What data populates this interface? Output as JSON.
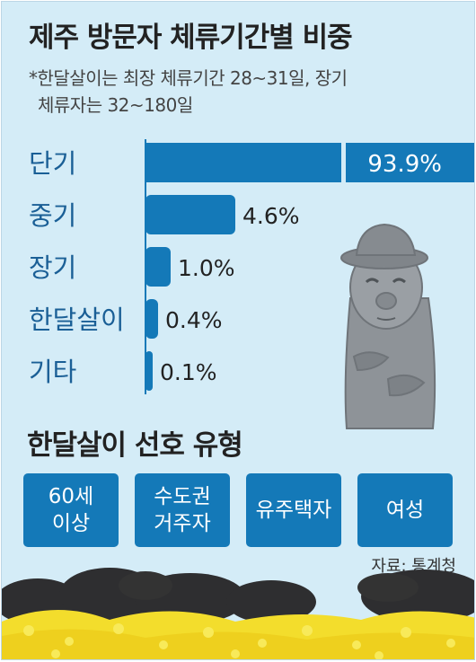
{
  "title": "제주 방문자 체류기간별 비중",
  "note_line1": "*한달살이는 최장 체류기간 28~31일, 장기",
  "note_line2": "체류자는 32~180일",
  "chart_data": {
    "type": "bar",
    "orientation": "horizontal",
    "categories": [
      "단기",
      "중기",
      "장기",
      "한달살이",
      "기타"
    ],
    "values": [
      93.9,
      4.6,
      1.0,
      0.4,
      0.1
    ],
    "labels": [
      "93.9%",
      "4.6%",
      "1.0%",
      "0.4%",
      "0.1%"
    ],
    "unit": "%",
    "axis_break": true,
    "grid": false
  },
  "subtitle": "한달살이 선호 유형",
  "preferences": [
    {
      "line1": "60세",
      "line2": "이상"
    },
    {
      "line1": "수도권",
      "line2": "거주자"
    },
    {
      "line1": "유주택자",
      "line2": ""
    },
    {
      "line1": "여성",
      "line2": ""
    }
  ],
  "source": "자료: 통계청",
  "colors": {
    "bar": "#1479b8",
    "label": "#1a5f96",
    "background": "#d4ecf7"
  },
  "icons": [
    "dolharubang-statue-illustration",
    "canola-flower-field-illustration",
    "basalt-stone-illustration"
  ]
}
